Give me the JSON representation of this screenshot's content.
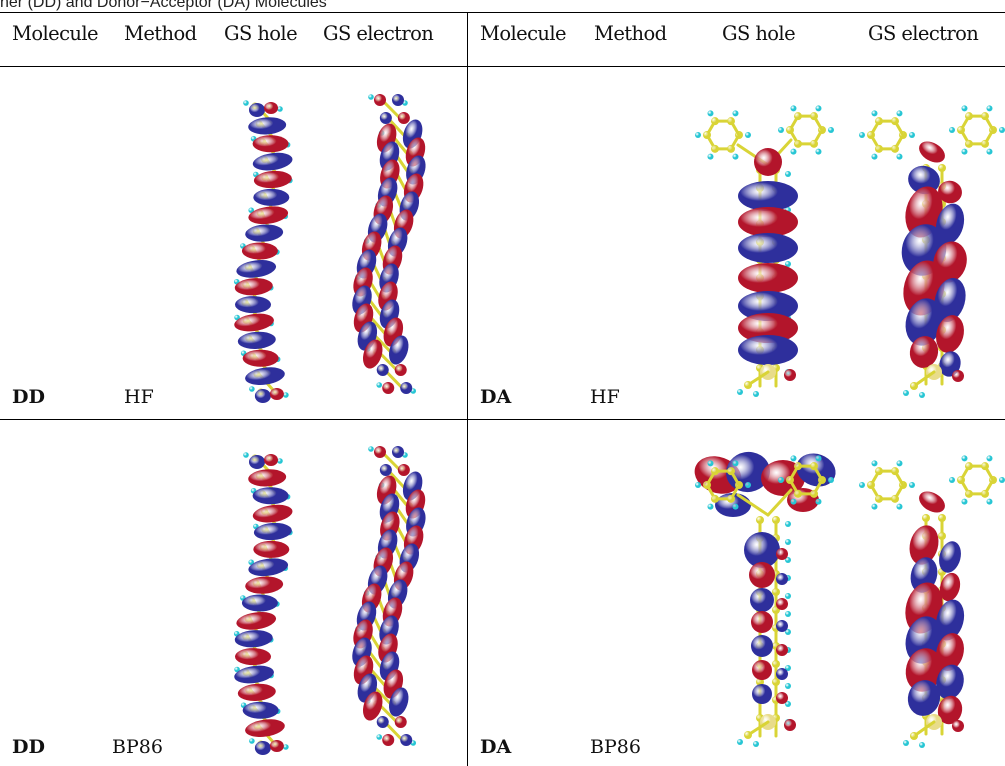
{
  "caption": "ner (DD) and Donor−Acceptor (DA) Molecules",
  "headers": {
    "left": [
      "Molecule",
      "Method",
      "GS hole",
      "GS electron"
    ],
    "right": [
      "Molecule",
      "Method",
      "GS hole",
      "GS electron"
    ]
  },
  "rows": [
    {
      "left_molecule": "DD",
      "left_method": "HF",
      "right_molecule": "DA",
      "right_method": "HF"
    },
    {
      "left_molecule": "DD",
      "left_method": "BP86",
      "right_molecule": "DA",
      "right_method": "BP86"
    }
  ],
  "colors": {
    "lobe_red": "#b3152b",
    "lobe_blue": "#2e2f9c",
    "carbon": "#d9d436",
    "hydrogen": "#27c6d4",
    "heteroatom": "#e8dc8a"
  }
}
